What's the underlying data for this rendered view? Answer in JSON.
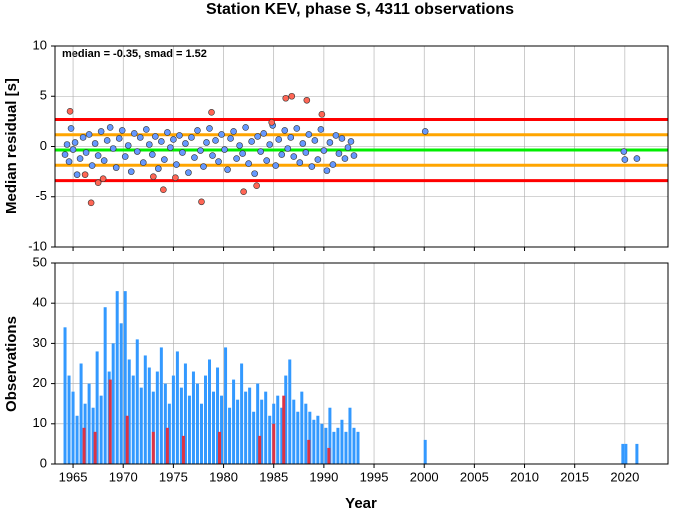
{
  "chart_data": [
    {
      "type": "scatter",
      "title": "Station KEV, phase S, 4311 observations",
      "ylabel": "Median residual [s]",
      "annotation": "median = -0.35, smad = 1.52",
      "xlim": [
        1963.2,
        2024.3
      ],
      "xticks": [
        1965,
        1970,
        1975,
        1980,
        1985,
        1990,
        1995,
        2000,
        2005,
        2010,
        2015,
        2020
      ],
      "ylim": [
        -10,
        10
      ],
      "yticks": [
        -10,
        -5,
        0,
        5,
        10
      ],
      "grid": true,
      "hlines": [
        {
          "value": 2.69,
          "color": "#ff0000"
        },
        {
          "value": 1.17,
          "color": "#ffa500"
        },
        {
          "value": -0.35,
          "color": "#00ee00"
        },
        {
          "value": -1.87,
          "color": "#ffa500"
        },
        {
          "value": -3.39,
          "color": "#ff0000"
        }
      ],
      "series": [
        {
          "color": "#6699ff",
          "x": [
            1964.2,
            1964.4,
            1964.6,
            1964.8,
            1965.0,
            1965.2,
            1965.4,
            1965.7,
            1966.0,
            1966.3,
            1966.6,
            1966.9,
            1967.2,
            1967.5,
            1967.8,
            1968.1,
            1968.4,
            1968.7,
            1969.0,
            1969.3,
            1969.6,
            1969.9,
            1970.2,
            1970.5,
            1970.8,
            1971.1,
            1971.4,
            1971.7,
            1972.0,
            1972.3,
            1972.6,
            1972.9,
            1973.2,
            1973.5,
            1973.8,
            1974.1,
            1974.4,
            1974.7,
            1975.0,
            1975.3,
            1975.6,
            1975.9,
            1976.2,
            1976.5,
            1976.8,
            1977.1,
            1977.4,
            1977.7,
            1978.0,
            1978.3,
            1978.6,
            1978.9,
            1979.2,
            1979.5,
            1979.8,
            1980.1,
            1980.4,
            1980.7,
            1981.0,
            1981.3,
            1981.6,
            1981.9,
            1982.2,
            1982.5,
            1982.8,
            1983.1,
            1983.4,
            1983.7,
            1984.0,
            1984.3,
            1984.6,
            1984.9,
            1985.2,
            1985.5,
            1985.8,
            1986.1,
            1986.4,
            1986.7,
            1987.0,
            1987.3,
            1987.6,
            1987.9,
            1988.2,
            1988.5,
            1988.8,
            1989.1,
            1989.4,
            1989.7,
            1990.0,
            1990.3,
            1990.6,
            1990.9,
            1991.2,
            1991.5,
            1991.8,
            1992.1,
            1992.4,
            1992.7,
            1993.0,
            2000.1,
            2019.9,
            2020.0,
            2021.2
          ],
          "y": [
            -0.8,
            0.2,
            -1.5,
            1.8,
            -0.3,
            0.4,
            -2.8,
            -1.2,
            0.9,
            -0.6,
            1.2,
            -1.9,
            0.3,
            -0.9,
            1.5,
            -1.4,
            0.6,
            1.9,
            -0.2,
            -2.1,
            0.8,
            1.6,
            -1.0,
            0.1,
            -2.5,
            1.3,
            -0.5,
            0.9,
            -1.6,
            1.7,
            0.2,
            -0.8,
            1.0,
            -2.2,
            0.5,
            -1.3,
            1.4,
            -0.1,
            0.7,
            -1.8,
            1.1,
            -0.6,
            0.3,
            -2.6,
            0.9,
            -1.1,
            1.6,
            -0.4,
            -2.0,
            0.4,
            1.8,
            -0.9,
            0.6,
            -1.5,
            1.2,
            -0.3,
            -2.3,
            0.8,
            1.5,
            -1.2,
            0.1,
            -0.7,
            1.9,
            -1.7,
            0.5,
            -2.7,
            1.0,
            -0.5,
            1.3,
            -1.4,
            0.2,
            2.1,
            -1.9,
            0.7,
            -0.8,
            1.6,
            -0.2,
            0.9,
            -1.0,
            1.8,
            -1.6,
            0.3,
            -0.6,
            1.2,
            -2.0,
            0.6,
            -1.3,
            1.7,
            -0.4,
            -2.4,
            0.4,
            -1.8,
            1.1,
            -0.7,
            0.8,
            -1.2,
            -0.1,
            0.5,
            -0.9,
            1.5,
            -0.5,
            -1.3,
            -1.2
          ]
        },
        {
          "color": "#ff6655",
          "x": [
            1964.7,
            1966.2,
            1966.8,
            1967.5,
            1968.0,
            1973.0,
            1974.0,
            1975.2,
            1977.8,
            1978.8,
            1982.0,
            1983.3,
            1984.8,
            1986.2,
            1986.8,
            1988.3,
            1989.8
          ],
          "y": [
            3.5,
            -2.8,
            -5.6,
            -3.6,
            -3.2,
            -3.0,
            -4.3,
            -3.1,
            -5.5,
            3.4,
            -4.5,
            -3.9,
            2.4,
            4.8,
            5.0,
            4.6,
            3.2
          ]
        }
      ]
    },
    {
      "type": "bar",
      "ylabel": "Observations",
      "xlabel": "Year",
      "xlim": [
        1963.2,
        2024.3
      ],
      "xticks": [
        1965,
        1970,
        1975,
        1980,
        1985,
        1990,
        1995,
        2000,
        2005,
        2010,
        2015,
        2020
      ],
      "ylim": [
        0,
        50
      ],
      "yticks": [
        0,
        10,
        20,
        30,
        40,
        50
      ],
      "grid": true,
      "series": [
        {
          "color": "#3399ff",
          "x": [
            1964.2,
            1964.6,
            1965.0,
            1965.4,
            1965.8,
            1966.2,
            1966.6,
            1967.0,
            1967.4,
            1967.8,
            1968.2,
            1968.6,
            1969.0,
            1969.4,
            1969.8,
            1970.2,
            1970.6,
            1971.0,
            1971.4,
            1971.8,
            1972.2,
            1972.6,
            1973.0,
            1973.4,
            1973.8,
            1974.2,
            1974.6,
            1975.0,
            1975.4,
            1975.8,
            1976.2,
            1976.6,
            1977.0,
            1977.4,
            1977.8,
            1978.2,
            1978.6,
            1979.0,
            1979.4,
            1979.8,
            1980.2,
            1980.6,
            1981.0,
            1981.4,
            1981.8,
            1982.2,
            1982.6,
            1983.0,
            1983.4,
            1983.8,
            1984.2,
            1984.6,
            1985.0,
            1985.4,
            1985.8,
            1986.2,
            1986.6,
            1987.0,
            1987.4,
            1987.8,
            1988.2,
            1988.6,
            1989.0,
            1989.4,
            1989.8,
            1990.2,
            1990.6,
            1991.0,
            1991.4,
            1991.8,
            1992.2,
            1992.6,
            1993.0,
            1993.4,
            2000.1,
            2019.8,
            2020.1,
            2021.2
          ],
          "values": [
            34,
            22,
            18,
            12,
            25,
            15,
            20,
            14,
            28,
            17,
            39,
            23,
            30,
            43,
            35,
            43,
            26,
            22,
            31,
            19,
            27,
            24,
            18,
            23,
            29,
            20,
            15,
            22,
            28,
            19,
            25,
            17,
            23,
            20,
            15,
            22,
            26,
            18,
            24,
            17,
            29,
            14,
            21,
            16,
            25,
            18,
            19,
            13,
            20,
            16,
            18,
            12,
            15,
            17,
            14,
            22,
            26,
            16,
            13,
            18,
            15,
            13,
            11,
            12,
            10,
            9,
            14,
            8,
            9,
            11,
            8,
            14,
            9,
            8,
            6,
            5,
            5,
            5
          ]
        },
        {
          "color": "#dd3344",
          "x": [
            1966.1,
            1967.2,
            1968.7,
            1970.4,
            1973.0,
            1974.4,
            1976.0,
            1979.6,
            1983.6,
            1985.0,
            1986.0,
            1988.5,
            1990.5
          ],
          "values": [
            9,
            8,
            21,
            12,
            8,
            9,
            7,
            8,
            7,
            10,
            17,
            6,
            4
          ]
        }
      ]
    }
  ]
}
